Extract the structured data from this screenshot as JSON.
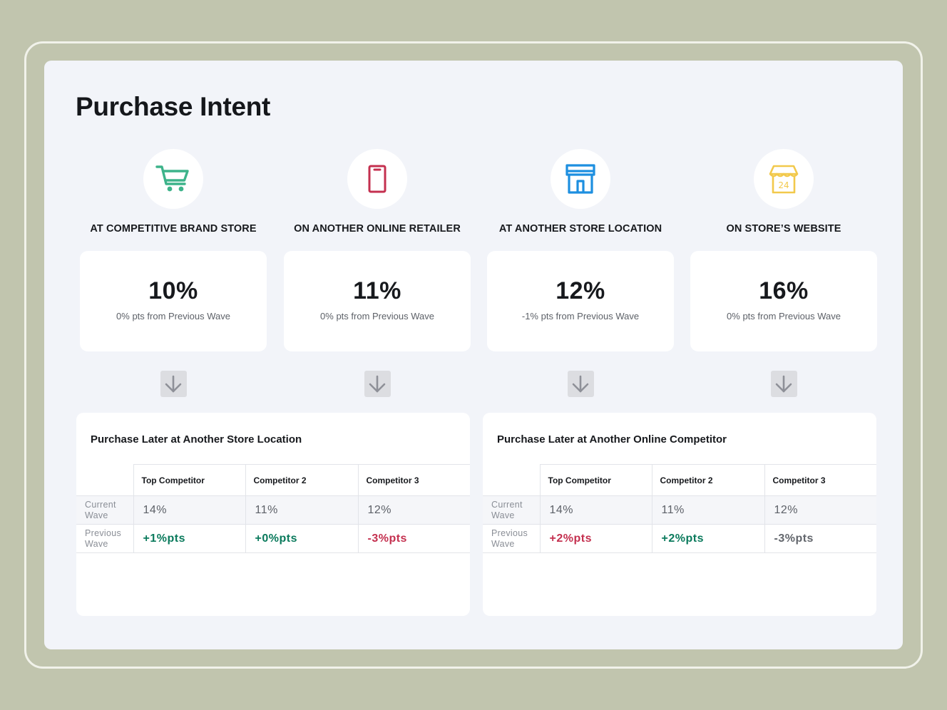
{
  "title": "Purchase Intent",
  "categories": [
    {
      "icon": "shopping-cart-icon",
      "label": "AT COMPETITIVE BRAND STORE",
      "value": "10%",
      "change": "0% pts from Previous Wave"
    },
    {
      "icon": "mobile-phone-icon",
      "label": "ON ANOTHER ONLINE RETAILER",
      "value": "11%",
      "change": "0% pts from Previous Wave"
    },
    {
      "icon": "storefront-icon",
      "label": "AT ANOTHER STORE LOCATION",
      "value": "12%",
      "change": "-1% pts from Previous Wave"
    },
    {
      "icon": "24-hour-store-icon",
      "label": "ON STORE’S WEBSITE",
      "value": "16%",
      "change": "0% pts from Previous Wave"
    }
  ],
  "colors": {
    "cart": "#3db38a",
    "phone": "#c4304f",
    "store": "#1d8fe0",
    "store24": "#f2c94c",
    "positive": "#0a7a5c",
    "negative": "#c4304f",
    "neutral": "#62666c"
  },
  "tables": [
    {
      "title": "Purchase Later at Another Store Location",
      "columns": [
        "Top Competitor",
        "Competitor 2",
        "Competitor 3"
      ],
      "current": {
        "label": "Current Wave",
        "values": [
          "14%",
          "11%",
          "12%"
        ]
      },
      "previous": {
        "label": "Previous Wave",
        "values": [
          "+1%pts",
          "+0%pts",
          "-3%pts"
        ]
      }
    },
    {
      "title": "Purchase Later at Another Online Competitor",
      "columns": [
        "Top Competitor",
        "Competitor 2",
        "Competitor 3"
      ],
      "current": {
        "label": "Current Wave",
        "values": [
          "14%",
          "11%",
          "12%"
        ]
      },
      "previous": {
        "label": "Previous Wave",
        "values": [
          "+2%pts",
          "+2%pts",
          "-3%pts"
        ]
      }
    }
  ]
}
